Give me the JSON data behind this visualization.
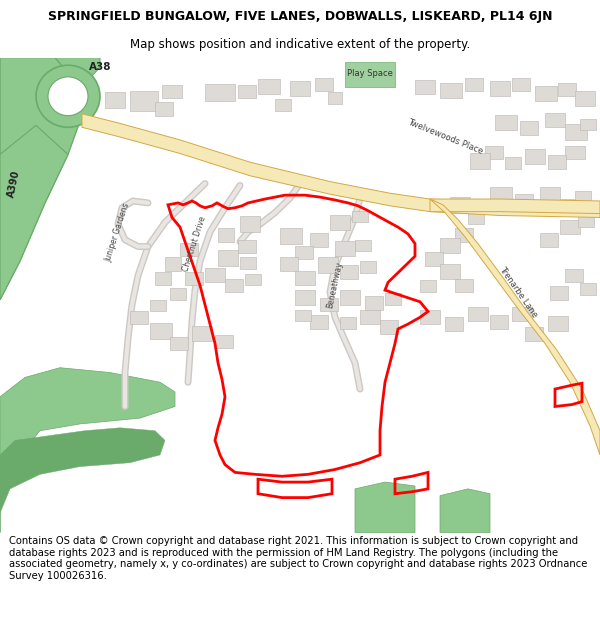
{
  "title_line1": "SPRINGFIELD BUNGALOW, FIVE LANES, DOBWALLS, LISKEARD, PL14 6JN",
  "title_line2": "Map shows position and indicative extent of the property.",
  "footer_text": "Contains OS data © Crown copyright and database right 2021. This information is subject to Crown copyright and database rights 2023 and is reproduced with the permission of HM Land Registry. The polygons (including the associated geometry, namely x, y co-ordinates) are subject to Crown copyright and database rights 2023 Ordnance Survey 100026316.",
  "title_fontsize": 9.0,
  "title_line2_fontsize": 8.5,
  "footer_fontsize": 7.2,
  "map_bg_color": "#ffffff",
  "road_yellow_fill": "#f5e9b8",
  "road_yellow_edge": "#d4a843",
  "building_color": "#dedad6",
  "building_outline": "#b8b4b0",
  "green_main": "#8dc98d",
  "green_dark": "#6aaa6a",
  "red_outline": "#ff0000",
  "figsize": [
    6.0,
    6.25
  ],
  "dpi": 100
}
